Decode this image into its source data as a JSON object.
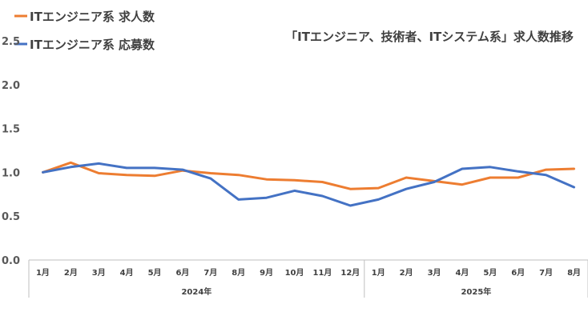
{
  "chart_data": {
    "type": "line",
    "title": "「ITエンジニア、技術者、ITシステム系」求人数推移",
    "categories": [
      "1月",
      "2月",
      "3月",
      "4月",
      "5月",
      "6月",
      "7月",
      "8月",
      "9月",
      "10月",
      "11月",
      "12月",
      "1月",
      "2月",
      "3月",
      "4月",
      "5月",
      "6月",
      "7月",
      "8月"
    ],
    "year_groups": [
      {
        "label": "2024年",
        "count": 12
      },
      {
        "label": "2025年",
        "count": 8
      }
    ],
    "ylim": [
      0,
      2.5
    ],
    "yticks": [
      "0.0",
      "0.5",
      "1.0",
      "1.5",
      "2.0",
      "2.5"
    ],
    "grid": false,
    "legend_position": "top-left",
    "series": [
      {
        "name": "ITエンジニア系 求人数",
        "color": "#ED7D31",
        "values": [
          1.0,
          1.11,
          0.99,
          0.97,
          0.96,
          1.02,
          0.99,
          0.97,
          0.92,
          0.91,
          0.89,
          0.81,
          0.82,
          0.94,
          0.9,
          0.86,
          0.94,
          0.94,
          1.03,
          1.04
        ]
      },
      {
        "name": "ITエンジニア系 応募数",
        "color": "#4472C4",
        "values": [
          1.0,
          1.06,
          1.1,
          1.05,
          1.05,
          1.03,
          0.93,
          0.69,
          0.71,
          0.79,
          0.73,
          0.62,
          0.69,
          0.81,
          0.89,
          1.04,
          1.06,
          1.01,
          0.97,
          0.83
        ]
      }
    ]
  }
}
